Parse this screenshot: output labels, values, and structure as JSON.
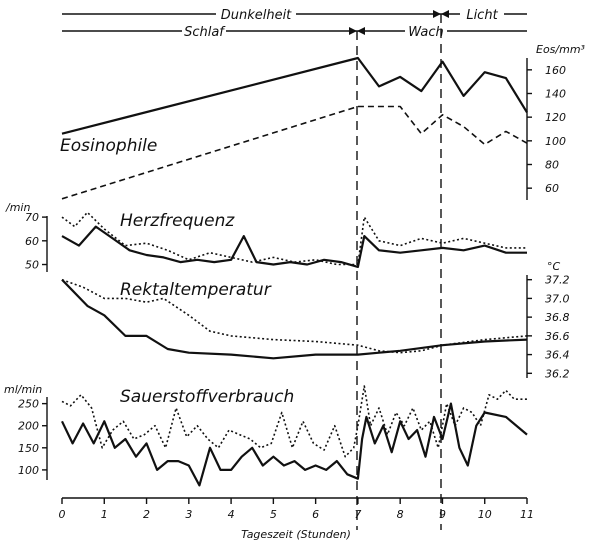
{
  "chart_data": [
    {
      "type": "line",
      "name": "eosinophile",
      "title": "Eosinophile",
      "ylabel": "Eos/mm³",
      "ylim": [
        50,
        170
      ],
      "yticks": [
        "60",
        "80",
        "100",
        "120",
        "140",
        "160"
      ],
      "series": [
        {
          "style": "solid",
          "x": [
            0,
            7,
            7.5,
            8,
            8.5,
            9,
            9.5,
            10,
            10.5,
            11
          ],
          "values": [
            106,
            170,
            146,
            154,
            142,
            167,
            138,
            158,
            153,
            124
          ]
        },
        {
          "style": "dashed",
          "x": [
            0,
            7,
            7.5,
            8,
            8.5,
            9,
            9.5,
            10,
            10.5,
            11
          ],
          "values": [
            51,
            129,
            129,
            129,
            106,
            122,
            112,
            97,
            108,
            98
          ]
        }
      ]
    },
    {
      "type": "line",
      "name": "herzfrequenz",
      "title": "Herzfrequenz",
      "ylabel": "/min",
      "ylim": [
        46,
        73
      ],
      "yticks": [
        "50",
        "60",
        "70"
      ],
      "series": [
        {
          "style": "solid",
          "x": [
            0,
            0.4,
            0.8,
            1.2,
            1.6,
            2.0,
            2.4,
            2.8,
            3.2,
            3.6,
            4.0,
            4.3,
            4.6,
            5.0,
            5.4,
            5.8,
            6.2,
            6.6,
            7.0,
            7.15,
            7.5,
            8.0,
            8.5,
            9.0,
            9.5,
            10.0,
            10.5,
            11.0
          ],
          "values": [
            62,
            58,
            66,
            61,
            56,
            54,
            53,
            51,
            52,
            51,
            52,
            62,
            51,
            50,
            51,
            50,
            52,
            51,
            49,
            62,
            56,
            55,
            56,
            57,
            56,
            58,
            55,
            55
          ]
        },
        {
          "style": "dotted",
          "x": [
            0,
            0.3,
            0.6,
            1.0,
            1.5,
            2.0,
            2.5,
            3.0,
            3.5,
            4.0,
            4.5,
            5.0,
            5.5,
            6.0,
            6.5,
            7.0,
            7.15,
            7.5,
            8.0,
            8.5,
            9.0,
            9.5,
            10.0,
            10.5,
            11.0
          ],
          "values": [
            70,
            66,
            72,
            65,
            58,
            59,
            56,
            52,
            55,
            53,
            51,
            53,
            51,
            52,
            50,
            50,
            70,
            60,
            58,
            61,
            59,
            61,
            59,
            57,
            57
          ]
        }
      ]
    },
    {
      "type": "line",
      "name": "rektaltemperatur",
      "title": "Rektaltemperatur",
      "ylabel": "°C",
      "ylim": [
        36.15,
        37.25
      ],
      "yticks": [
        "36.2",
        "36.4",
        "36.6",
        "36.8",
        "37.0",
        "37.2"
      ],
      "series": [
        {
          "style": "solid",
          "x": [
            0,
            0.6,
            1.0,
            1.5,
            2.0,
            2.5,
            3.0,
            4.0,
            5.0,
            6.0,
            7.0,
            7.5,
            8.0,
            9.0,
            10.0,
            11.0
          ],
          "values": [
            37.2,
            36.92,
            36.82,
            36.6,
            36.6,
            36.46,
            36.42,
            36.4,
            36.36,
            36.4,
            36.4,
            36.42,
            36.44,
            36.5,
            36.54,
            36.56
          ]
        },
        {
          "style": "dotted",
          "x": [
            0,
            0.5,
            1.0,
            1.5,
            2.0,
            2.4,
            3.0,
            3.5,
            4.0,
            5.0,
            6.0,
            7.0,
            7.5,
            8.0,
            8.5,
            9.0,
            10.0,
            11.0
          ],
          "values": [
            37.2,
            37.12,
            37.0,
            37.0,
            36.96,
            37.0,
            36.82,
            36.65,
            36.6,
            36.56,
            36.54,
            36.5,
            36.44,
            36.42,
            36.44,
            36.5,
            36.56,
            36.6
          ]
        }
      ]
    },
    {
      "type": "line",
      "name": "sauerstoffverbrauch",
      "title": "Sauerstoffverbrauch",
      "ylabel": "ml/min",
      "ylim": [
        50,
        265
      ],
      "yticks": [
        "100",
        "150",
        "200",
        "250"
      ],
      "xlabel": "Tageszeit  (Stunden)",
      "xticks": [
        "0",
        "1",
        "2",
        "3",
        "4",
        "5",
        "6",
        "7",
        "8",
        "9",
        "10",
        "11"
      ],
      "series": [
        {
          "style": "solid",
          "x": [
            0,
            0.25,
            0.5,
            0.75,
            1.0,
            1.25,
            1.5,
            1.75,
            2.0,
            2.25,
            2.5,
            2.75,
            3.0,
            3.25,
            3.5,
            3.75,
            4.0,
            4.25,
            4.5,
            4.75,
            5.0,
            5.25,
            5.5,
            5.75,
            6.0,
            6.25,
            6.5,
            6.75,
            7.0,
            7.1,
            7.2,
            7.4,
            7.6,
            7.8,
            8.0,
            8.2,
            8.4,
            8.6,
            8.8,
            9.0,
            9.2,
            9.4,
            9.6,
            9.8,
            10.0,
            10.5,
            11.0
          ],
          "values": [
            210,
            160,
            205,
            160,
            210,
            150,
            170,
            130,
            160,
            100,
            120,
            120,
            110,
            65,
            150,
            100,
            100,
            130,
            150,
            110,
            130,
            110,
            120,
            100,
            110,
            100,
            120,
            90,
            80,
            170,
            220,
            160,
            200,
            140,
            210,
            170,
            190,
            130,
            220,
            170,
            250,
            150,
            110,
            200,
            230,
            220,
            180
          ]
        },
        {
          "style": "dotted",
          "x": [
            0,
            0.2,
            0.45,
            0.7,
            0.95,
            1.2,
            1.45,
            1.7,
            1.95,
            2.2,
            2.45,
            2.7,
            2.95,
            3.2,
            3.45,
            3.7,
            3.95,
            4.2,
            4.45,
            4.7,
            4.95,
            5.2,
            5.45,
            5.7,
            5.95,
            6.2,
            6.45,
            6.7,
            6.9,
            7.0,
            7.15,
            7.3,
            7.5,
            7.7,
            7.9,
            8.1,
            8.3,
            8.5,
            8.7,
            8.9,
            9.1,
            9.3,
            9.5,
            9.7,
            9.9,
            10.1,
            10.3,
            10.5,
            10.7,
            11.0
          ],
          "values": [
            255,
            245,
            270,
            240,
            150,
            190,
            210,
            170,
            180,
            200,
            150,
            240,
            175,
            200,
            170,
            150,
            190,
            180,
            170,
            150,
            160,
            230,
            150,
            210,
            160,
            145,
            200,
            130,
            150,
            200,
            290,
            200,
            240,
            180,
            230,
            200,
            240,
            190,
            210,
            150,
            250,
            200,
            240,
            230,
            200,
            270,
            260,
            280,
            260,
            260
          ]
        }
      ]
    }
  ],
  "header": {
    "dunkelheit": "Dunkelheit",
    "licht": "Licht",
    "schlaf": "Schlaf",
    "wach": "Wach"
  }
}
